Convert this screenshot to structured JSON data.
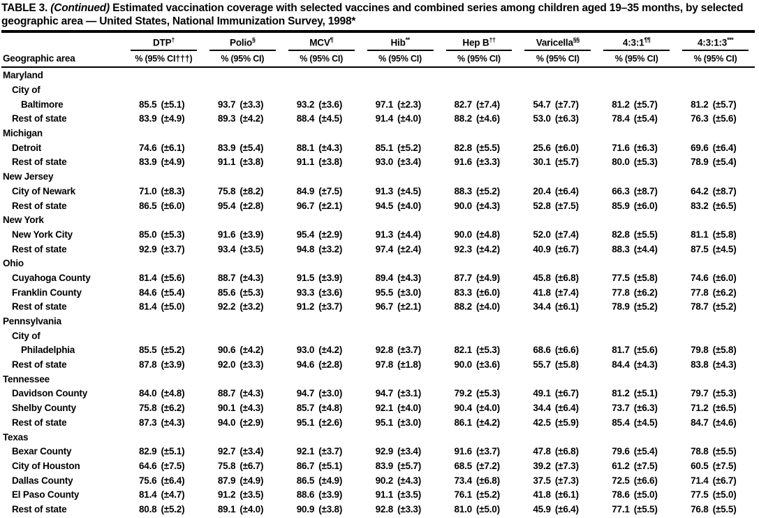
{
  "title": {
    "prefix": "TABLE 3. ",
    "italic": "(Continued)",
    "suffix": " Estimated vaccination coverage with selected vaccines and combined series among children aged 19–35 months, by selected geographic area — United States, National Immunization Survey, 1998*"
  },
  "header": {
    "row_label": "Geographic area",
    "columns": [
      {
        "name": "DTP",
        "sup": "†",
        "sub": "% (95% CI†††)"
      },
      {
        "name": "Polio",
        "sup": "§",
        "sub": "% (95% CI)"
      },
      {
        "name": "MCV",
        "sup": "¶",
        "sub": "% (95% CI)"
      },
      {
        "name": "Hib",
        "sup": "**",
        "sub": "% (95% CI)"
      },
      {
        "name": "Hep B",
        "sup": "††",
        "sub": "% (95% CI)"
      },
      {
        "name": "Varicella",
        "sup": "§§",
        "sub": "% (95% CI)"
      },
      {
        "name": "4:3:1",
        "sup": "¶¶",
        "sub": "% (95% CI)"
      },
      {
        "name": "4:3:1:3",
        "sup": "***",
        "sub": "% (95% CI)"
      }
    ]
  },
  "rows": [
    {
      "type": "group",
      "label": "Maryland",
      "indent": 0
    },
    {
      "type": "sub",
      "label": "City of",
      "indent": 1
    },
    {
      "type": "data",
      "label": "Baltimore",
      "indent": 2,
      "cells": [
        [
          "85.5",
          "(±5.1)"
        ],
        [
          "93.7",
          "(±3.3)"
        ],
        [
          "93.2",
          "(±3.6)"
        ],
        [
          "97.1",
          "(±2.3)"
        ],
        [
          "82.7",
          "(±7.4)"
        ],
        [
          "54.7",
          "(±7.7)"
        ],
        [
          "81.2",
          "(±5.7)"
        ],
        [
          "81.2",
          "(±5.7)"
        ]
      ]
    },
    {
      "type": "data",
      "label": "Rest of state",
      "indent": 1,
      "cells": [
        [
          "83.9",
          "(±4.9)"
        ],
        [
          "89.3",
          "(±4.2)"
        ],
        [
          "88.4",
          "(±4.5)"
        ],
        [
          "91.4",
          "(±4.0)"
        ],
        [
          "88.2",
          "(±4.6)"
        ],
        [
          "53.0",
          "(±6.3)"
        ],
        [
          "78.4",
          "(±5.4)"
        ],
        [
          "76.3",
          "(±5.6)"
        ]
      ]
    },
    {
      "type": "group",
      "label": "Michigan",
      "indent": 0
    },
    {
      "type": "data",
      "label": "Detroit",
      "indent": 1,
      "cells": [
        [
          "74.6",
          "(±6.1)"
        ],
        [
          "83.9",
          "(±5.4)"
        ],
        [
          "88.1",
          "(±4.3)"
        ],
        [
          "85.1",
          "(±5.2)"
        ],
        [
          "82.8",
          "(±5.5)"
        ],
        [
          "25.6",
          "(±6.0)"
        ],
        [
          "71.6",
          "(±6.3)"
        ],
        [
          "69.6",
          "(±6.4)"
        ]
      ]
    },
    {
      "type": "data",
      "label": "Rest of state",
      "indent": 1,
      "cells": [
        [
          "83.9",
          "(±4.9)"
        ],
        [
          "91.1",
          "(±3.8)"
        ],
        [
          "91.1",
          "(±3.8)"
        ],
        [
          "93.0",
          "(±3.4)"
        ],
        [
          "91.6",
          "(±3.3)"
        ],
        [
          "30.1",
          "(±5.7)"
        ],
        [
          "80.0",
          "(±5.3)"
        ],
        [
          "78.9",
          "(±5.4)"
        ]
      ]
    },
    {
      "type": "group",
      "label": "New Jersey",
      "indent": 0
    },
    {
      "type": "data",
      "label": "City of Newark",
      "indent": 1,
      "cells": [
        [
          "71.0",
          "(±8.3)"
        ],
        [
          "75.8",
          "(±8.2)"
        ],
        [
          "84.9",
          "(±7.5)"
        ],
        [
          "91.3",
          "(±4.5)"
        ],
        [
          "88.3",
          "(±5.2)"
        ],
        [
          "20.4",
          "(±6.4)"
        ],
        [
          "66.3",
          "(±8.7)"
        ],
        [
          "64.2",
          "(±8.7)"
        ]
      ]
    },
    {
      "type": "data",
      "label": "Rest of state",
      "indent": 1,
      "cells": [
        [
          "86.5",
          "(±6.0)"
        ],
        [
          "95.4",
          "(±2.8)"
        ],
        [
          "96.7",
          "(±2.1)"
        ],
        [
          "94.5",
          "(±4.0)"
        ],
        [
          "90.0",
          "(±4.3)"
        ],
        [
          "52.8",
          "(±7.5)"
        ],
        [
          "85.9",
          "(±6.0)"
        ],
        [
          "83.2",
          "(±6.5)"
        ]
      ]
    },
    {
      "type": "group",
      "label": "New York",
      "indent": 0
    },
    {
      "type": "data",
      "label": "New York City",
      "indent": 1,
      "cells": [
        [
          "85.0",
          "(±5.3)"
        ],
        [
          "91.6",
          "(±3.9)"
        ],
        [
          "95.4",
          "(±2.9)"
        ],
        [
          "91.3",
          "(±4.4)"
        ],
        [
          "90.0",
          "(±4.8)"
        ],
        [
          "52.0",
          "(±7.4)"
        ],
        [
          "82.8",
          "(±5.5)"
        ],
        [
          "81.1",
          "(±5.8)"
        ]
      ]
    },
    {
      "type": "data",
      "label": "Rest of state",
      "indent": 1,
      "cells": [
        [
          "92.9",
          "(±3.7)"
        ],
        [
          "93.4",
          "(±3.5)"
        ],
        [
          "94.8",
          "(±3.2)"
        ],
        [
          "97.4",
          "(±2.4)"
        ],
        [
          "92.3",
          "(±4.2)"
        ],
        [
          "40.9",
          "(±6.7)"
        ],
        [
          "88.3",
          "(±4.4)"
        ],
        [
          "87.5",
          "(±4.5)"
        ]
      ]
    },
    {
      "type": "group",
      "label": "Ohio",
      "indent": 0
    },
    {
      "type": "data",
      "label": "Cuyahoga County",
      "indent": 1,
      "cells": [
        [
          "81.4",
          "(±5.6)"
        ],
        [
          "88.7",
          "(±4.3)"
        ],
        [
          "91.5",
          "(±3.9)"
        ],
        [
          "89.4",
          "(±4.3)"
        ],
        [
          "87.7",
          "(±4.9)"
        ],
        [
          "45.8",
          "(±6.8)"
        ],
        [
          "77.5",
          "(±5.8)"
        ],
        [
          "74.6",
          "(±6.0)"
        ]
      ]
    },
    {
      "type": "data",
      "label": "Franklin County",
      "indent": 1,
      "cells": [
        [
          "84.6",
          "(±5.4)"
        ],
        [
          "85.6",
          "(±5.3)"
        ],
        [
          "93.3",
          "(±3.6)"
        ],
        [
          "95.5",
          "(±3.0)"
        ],
        [
          "83.3",
          "(±6.0)"
        ],
        [
          "41.8",
          "(±7.4)"
        ],
        [
          "77.8",
          "(±6.2)"
        ],
        [
          "77.8",
          "(±6.2)"
        ]
      ]
    },
    {
      "type": "data",
      "label": "Rest of state",
      "indent": 1,
      "cells": [
        [
          "81.4",
          "(±5.0)"
        ],
        [
          "92.2",
          "(±3.2)"
        ],
        [
          "91.2",
          "(±3.7)"
        ],
        [
          "96.7",
          "(±2.1)"
        ],
        [
          "88.2",
          "(±4.0)"
        ],
        [
          "34.4",
          "(±6.1)"
        ],
        [
          "78.9",
          "(±5.2)"
        ],
        [
          "78.7",
          "(±5.2)"
        ]
      ]
    },
    {
      "type": "group",
      "label": "Pennsylvania",
      "indent": 0
    },
    {
      "type": "sub",
      "label": "City of",
      "indent": 1
    },
    {
      "type": "data",
      "label": "Philadelphia",
      "indent": 2,
      "cells": [
        [
          "85.5",
          "(±5.2)"
        ],
        [
          "90.6",
          "(±4.2)"
        ],
        [
          "93.0",
          "(±4.2)"
        ],
        [
          "92.8",
          "(±3.7)"
        ],
        [
          "82.1",
          "(±5.3)"
        ],
        [
          "68.6",
          "(±6.6)"
        ],
        [
          "81.7",
          "(±5.6)"
        ],
        [
          "79.8",
          "(±5.8)"
        ]
      ]
    },
    {
      "type": "data",
      "label": "Rest of state",
      "indent": 1,
      "cells": [
        [
          "87.8",
          "(±3.9)"
        ],
        [
          "92.0",
          "(±3.3)"
        ],
        [
          "94.6",
          "(±2.8)"
        ],
        [
          "97.8",
          "(±1.8)"
        ],
        [
          "90.0",
          "(±3.6)"
        ],
        [
          "55.7",
          "(±5.8)"
        ],
        [
          "84.4",
          "(±4.3)"
        ],
        [
          "83.8",
          "(±4.3)"
        ]
      ]
    },
    {
      "type": "group",
      "label": "Tennessee",
      "indent": 0
    },
    {
      "type": "data",
      "label": "Davidson County",
      "indent": 1,
      "cells": [
        [
          "84.0",
          "(±4.8)"
        ],
        [
          "88.7",
          "(±4.3)"
        ],
        [
          "94.7",
          "(±3.0)"
        ],
        [
          "94.7",
          "(±3.1)"
        ],
        [
          "79.2",
          "(±5.3)"
        ],
        [
          "49.1",
          "(±6.7)"
        ],
        [
          "81.2",
          "(±5.1)"
        ],
        [
          "79.7",
          "(±5.3)"
        ]
      ]
    },
    {
      "type": "data",
      "label": "Shelby County",
      "indent": 1,
      "cells": [
        [
          "75.8",
          "(±6.2)"
        ],
        [
          "90.1",
          "(±4.3)"
        ],
        [
          "85.7",
          "(±4.8)"
        ],
        [
          "92.1",
          "(±4.0)"
        ],
        [
          "90.4",
          "(±4.0)"
        ],
        [
          "34.4",
          "(±6.4)"
        ],
        [
          "73.7",
          "(±6.3)"
        ],
        [
          "71.2",
          "(±6.5)"
        ]
      ]
    },
    {
      "type": "data",
      "label": "Rest of state",
      "indent": 1,
      "cells": [
        [
          "87.3",
          "(±4.3)"
        ],
        [
          "94.0",
          "(±2.9)"
        ],
        [
          "95.1",
          "(±2.6)"
        ],
        [
          "95.1",
          "(±3.0)"
        ],
        [
          "86.1",
          "(±4.2)"
        ],
        [
          "42.5",
          "(±5.9)"
        ],
        [
          "85.4",
          "(±4.5)"
        ],
        [
          "84.7",
          "(±4.6)"
        ]
      ]
    },
    {
      "type": "group",
      "label": "Texas",
      "indent": 0
    },
    {
      "type": "data",
      "label": "Bexar County",
      "indent": 1,
      "cells": [
        [
          "82.9",
          "(±5.1)"
        ],
        [
          "92.7",
          "(±3.4)"
        ],
        [
          "92.1",
          "(±3.7)"
        ],
        [
          "92.9",
          "(±3.4)"
        ],
        [
          "91.6",
          "(±3.7)"
        ],
        [
          "47.8",
          "(±6.8)"
        ],
        [
          "79.6",
          "(±5.4)"
        ],
        [
          "78.8",
          "(±5.5)"
        ]
      ]
    },
    {
      "type": "data",
      "label": "City of Houston",
      "indent": 1,
      "cells": [
        [
          "64.6",
          "(±7.5)"
        ],
        [
          "75.8",
          "(±6.7)"
        ],
        [
          "86.7",
          "(±5.1)"
        ],
        [
          "83.9",
          "(±5.7)"
        ],
        [
          "68.5",
          "(±7.2)"
        ],
        [
          "39.2",
          "(±7.3)"
        ],
        [
          "61.2",
          "(±7.5)"
        ],
        [
          "60.5",
          "(±7.5)"
        ]
      ]
    },
    {
      "type": "data",
      "label": "Dallas County",
      "indent": 1,
      "cells": [
        [
          "75.6",
          "(±6.4)"
        ],
        [
          "87.9",
          "(±4.9)"
        ],
        [
          "86.5",
          "(±4.9)"
        ],
        [
          "90.2",
          "(±4.3)"
        ],
        [
          "73.4",
          "(±6.8)"
        ],
        [
          "37.5",
          "(±7.3)"
        ],
        [
          "72.5",
          "(±6.6)"
        ],
        [
          "71.4",
          "(±6.7)"
        ]
      ]
    },
    {
      "type": "data",
      "label": "El Paso County",
      "indent": 1,
      "cells": [
        [
          "81.4",
          "(±4.7)"
        ],
        [
          "91.2",
          "(±3.5)"
        ],
        [
          "88.6",
          "(±3.9)"
        ],
        [
          "91.1",
          "(±3.5)"
        ],
        [
          "76.1",
          "(±5.2)"
        ],
        [
          "41.8",
          "(±6.1)"
        ],
        [
          "78.6",
          "(±5.0)"
        ],
        [
          "77.5",
          "(±5.0)"
        ]
      ]
    },
    {
      "type": "data",
      "label": "Rest of state",
      "indent": 1,
      "cells": [
        [
          "80.8",
          "(±5.2)"
        ],
        [
          "89.1",
          "(±4.0)"
        ],
        [
          "90.9",
          "(±3.8)"
        ],
        [
          "92.8",
          "(±3.3)"
        ],
        [
          "81.0",
          "(±5.0)"
        ],
        [
          "45.9",
          "(±6.4)"
        ],
        [
          "77.1",
          "(±5.5)"
        ],
        [
          "76.8",
          "(±5.5)"
        ]
      ]
    }
  ]
}
